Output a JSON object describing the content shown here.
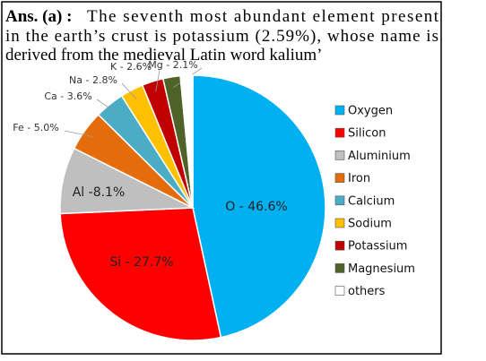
{
  "text": {
    "lead": "Ans. (a) :",
    "lines": [
      "The seventh most abundant element present",
      "in the earth’s crust is potassium (2.59%), whose name is",
      "derived from the medieval Latin word kalium’"
    ]
  },
  "chart_data": {
    "type": "pie",
    "categories": [
      "Oxygen",
      "Silicon",
      "Aluminium",
      "Iron",
      "Calcium",
      "Sodium",
      "Potassium",
      "Magnesium",
      "others"
    ],
    "values": [
      46.6,
      27.7,
      8.1,
      5.0,
      3.6,
      2.8,
      2.6,
      2.1,
      1.5
    ],
    "value_labels": [
      "O - 46.6%",
      "Si - 27.7%",
      "Al -8.1%",
      "Fe - 5.0%",
      "Ca - 3.6%",
      "Na - 2.8%",
      "K - 2.6%",
      "Mg - 2.1%",
      null
    ],
    "colors": [
      "#00b0f0",
      "#ff0000",
      "#bfbfbf",
      "#e46c0a",
      "#4bacc6",
      "#ffc000",
      "#c00000",
      "#4f6228",
      "#ffffff"
    ],
    "legend": "right"
  }
}
